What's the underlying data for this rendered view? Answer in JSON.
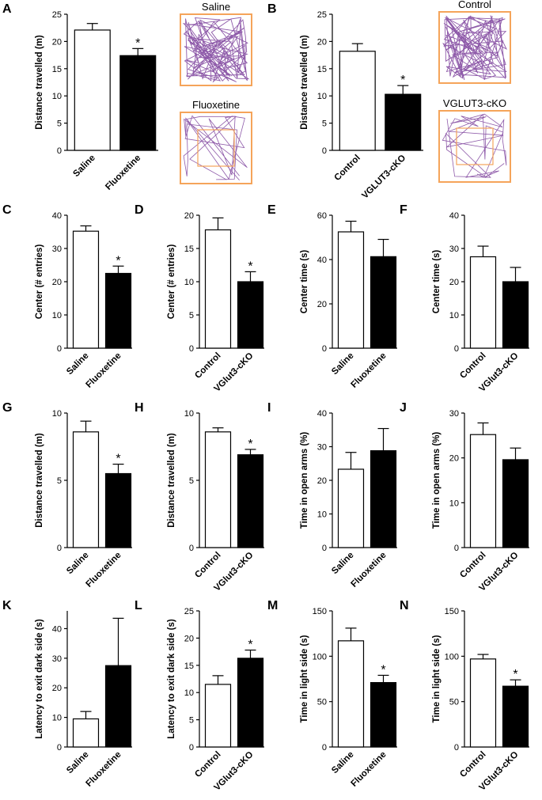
{
  "chart_data": [
    {
      "type": "bar",
      "panel": "A",
      "ylabel": "Distance travelled (m)",
      "categories": [
        "Saline",
        "Fluoxetine"
      ],
      "values": [
        22.1,
        17.4
      ],
      "errors": [
        1.2,
        1.3
      ],
      "colors": [
        "#ffffff",
        "#000000"
      ],
      "value_annotations": [
        null,
        "*"
      ],
      "ylim": [
        0,
        25
      ],
      "yticks": [
        0,
        5,
        10,
        15,
        20,
        25
      ]
    },
    {
      "type": "bar",
      "panel": "B",
      "ylabel": "Distance travelled (m)",
      "categories": [
        "Control",
        "VGLUT3-cKO"
      ],
      "values": [
        18.2,
        10.3
      ],
      "errors": [
        1.4,
        1.6
      ],
      "colors": [
        "#ffffff",
        "#000000"
      ],
      "value_annotations": [
        null,
        "*"
      ],
      "ylim": [
        0,
        25
      ],
      "yticks": [
        0,
        5,
        10,
        15,
        20,
        25
      ]
    },
    {
      "type": "bar",
      "panel": "C",
      "ylabel": "Center (# entries)",
      "categories": [
        "Saline",
        "Fluoxetine"
      ],
      "values": [
        35.2,
        22.5
      ],
      "errors": [
        1.6,
        2.2
      ],
      "colors": [
        "#ffffff",
        "#000000"
      ],
      "value_annotations": [
        null,
        "*"
      ],
      "ylim": [
        0,
        40
      ],
      "yticks": [
        0,
        10,
        20,
        30,
        40
      ]
    },
    {
      "type": "bar",
      "panel": "D",
      "ylabel": "Center (# entries)",
      "categories": [
        "Control",
        "VGlut3-cKO"
      ],
      "values": [
        17.8,
        10.0
      ],
      "errors": [
        1.8,
        1.5
      ],
      "colors": [
        "#ffffff",
        "#000000"
      ],
      "value_annotations": [
        null,
        "*"
      ],
      "ylim": [
        0,
        20
      ],
      "yticks": [
        0,
        5,
        10,
        15,
        20
      ]
    },
    {
      "type": "bar",
      "panel": "E",
      "ylabel": "Center time (s)",
      "categories": [
        "Saline",
        "Fluoxetine"
      ],
      "values": [
        52.5,
        41.3
      ],
      "errors": [
        4.8,
        7.8
      ],
      "colors": [
        "#ffffff",
        "#000000"
      ],
      "ylim": [
        0,
        60
      ],
      "yticks": [
        0,
        20,
        40,
        60
      ]
    },
    {
      "type": "bar",
      "panel": "F",
      "ylabel": "Center time (s)",
      "categories": [
        "Control",
        "VGlut3-cKO"
      ],
      "values": [
        27.5,
        20.0
      ],
      "errors": [
        3.2,
        4.3
      ],
      "colors": [
        "#ffffff",
        "#000000"
      ],
      "ylim": [
        0,
        40
      ],
      "yticks": [
        0,
        10,
        20,
        30,
        40
      ]
    },
    {
      "type": "bar",
      "panel": "G",
      "ylabel": "Distance travelled (m)",
      "categories": [
        "Saline",
        "Fluoxetine"
      ],
      "values": [
        8.6,
        5.5
      ],
      "errors": [
        0.8,
        0.7
      ],
      "colors": [
        "#ffffff",
        "#000000"
      ],
      "value_annotations": [
        null,
        "*"
      ],
      "ylim": [
        0,
        10
      ],
      "yticks": [
        0,
        5,
        10
      ]
    },
    {
      "type": "bar",
      "panel": "H",
      "ylabel": "Distance travelled (m)",
      "categories": [
        "Control",
        "VGlut3-cKO"
      ],
      "values": [
        8.6,
        6.9
      ],
      "errors": [
        0.3,
        0.4
      ],
      "colors": [
        "#ffffff",
        "#000000"
      ],
      "value_annotations": [
        null,
        "*"
      ],
      "ylim": [
        0,
        10
      ],
      "yticks": [
        0,
        5,
        10
      ]
    },
    {
      "type": "bar",
      "panel": "I",
      "ylabel": "Time in open arms (%)",
      "categories": [
        "Saline",
        "Fluoxetine"
      ],
      "values": [
        23.3,
        28.8
      ],
      "errors": [
        5.0,
        6.6
      ],
      "colors": [
        "#ffffff",
        "#000000"
      ],
      "ylim": [
        0,
        40
      ],
      "yticks": [
        0,
        10,
        20,
        30,
        40
      ]
    },
    {
      "type": "bar",
      "panel": "J",
      "ylabel": "Time in open arms (%)",
      "categories": [
        "Control",
        "VGlut3-cKO"
      ],
      "values": [
        25.2,
        19.6
      ],
      "errors": [
        2.6,
        2.6
      ],
      "colors": [
        "#ffffff",
        "#000000"
      ],
      "ylim": [
        0,
        30
      ],
      "yticks": [
        0,
        10,
        20,
        30
      ]
    },
    {
      "type": "bar",
      "panel": "K",
      "ylabel": "Latency to exit dark side (s)",
      "categories": [
        "Saline",
        "Fluoxetine"
      ],
      "values": [
        9.5,
        27.5
      ],
      "errors": [
        2.5,
        16.0
      ],
      "colors": [
        "#ffffff",
        "#000000"
      ],
      "ylim": [
        0,
        46
      ],
      "yticks": [
        0,
        10,
        20,
        30,
        40
      ]
    },
    {
      "type": "bar",
      "panel": "L",
      "ylabel": "Latency to exit dark side (s)",
      "categories": [
        "Control",
        "VGlut3-cKO"
      ],
      "values": [
        11.5,
        16.3
      ],
      "errors": [
        1.6,
        1.5
      ],
      "colors": [
        "#ffffff",
        "#000000"
      ],
      "value_annotations": [
        null,
        "*"
      ],
      "ylim": [
        0,
        25
      ],
      "yticks": [
        0,
        5,
        10,
        15,
        20,
        25
      ]
    },
    {
      "type": "bar",
      "panel": "M",
      "ylabel": "Time in light side (s)",
      "categories": [
        "Saline",
        "Fluoxetine"
      ],
      "values": [
        117,
        71
      ],
      "errors": [
        14,
        8
      ],
      "colors": [
        "#ffffff",
        "#000000"
      ],
      "value_annotations": [
        null,
        "*"
      ],
      "ylim": [
        0,
        150
      ],
      "yticks": [
        0,
        50,
        100,
        150
      ]
    },
    {
      "type": "bar",
      "panel": "N",
      "ylabel": "Time in light side (s)",
      "categories": [
        "Control",
        "VGlut3-cKO"
      ],
      "values": [
        97,
        67
      ],
      "errors": [
        5,
        7
      ],
      "colors": [
        "#ffffff",
        "#000000"
      ],
      "value_annotations": [
        null,
        "*"
      ],
      "ylim": [
        0,
        150
      ],
      "yticks": [
        0,
        50,
        100,
        150
      ]
    }
  ],
  "track_images": [
    {
      "label": "Saline"
    },
    {
      "label": "Fluoxetine"
    },
    {
      "label": "Control"
    },
    {
      "label": "VGLUT3-cKO"
    }
  ]
}
